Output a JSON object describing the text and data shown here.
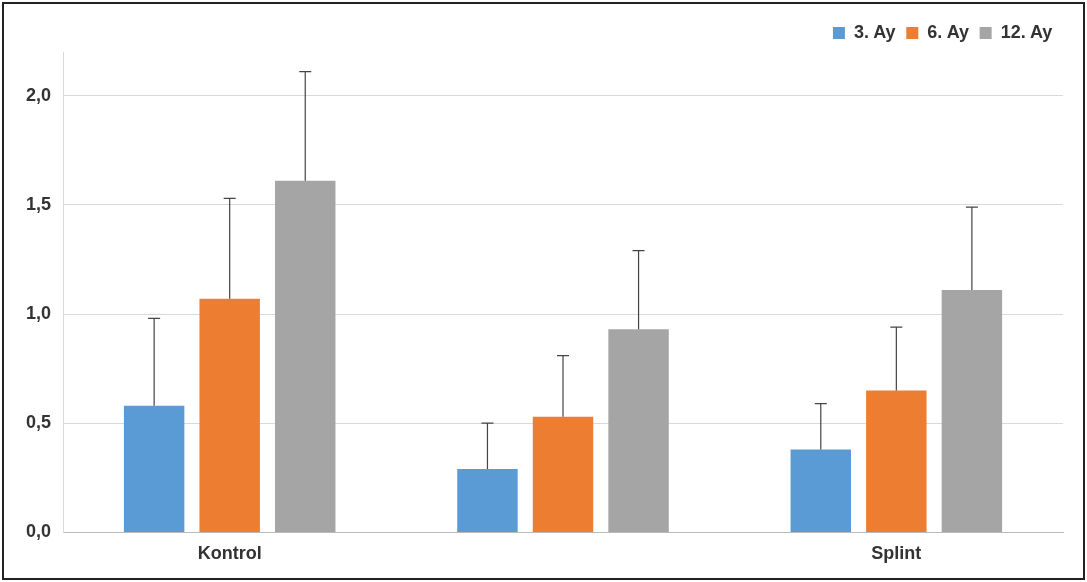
{
  "chart_data": {
    "type": "bar",
    "categories": [
      "Kontrol",
      null,
      "Splint"
    ],
    "series": [
      {
        "name": "3. Ay",
        "color": "#5b9bd5",
        "values": [
          0.58,
          0.29,
          0.38
        ],
        "errors": [
          [
            0.58,
            0.98
          ],
          [
            0.29,
            0.5
          ],
          [
            0.38,
            0.59
          ]
        ]
      },
      {
        "name": "6. Ay",
        "color": "#ed7d31",
        "values": [
          1.07,
          0.53,
          0.65
        ],
        "errors": [
          [
            1.07,
            1.53
          ],
          [
            0.53,
            0.81
          ],
          [
            0.65,
            0.94
          ]
        ]
      },
      {
        "name": "12. Ay",
        "color": "#a5a5a5",
        "values": [
          1.61,
          0.93,
          1.11
        ],
        "errors": [
          [
            1.61,
            2.11
          ],
          [
            0.93,
            1.29
          ],
          [
            1.11,
            1.49
          ]
        ]
      }
    ],
    "ylim": [
      0,
      2.2
    ],
    "yticks": [
      {
        "value": 0,
        "label": "0,0"
      },
      {
        "value": 0.5,
        "label": "0,5"
      },
      {
        "value": 1,
        "label": "1,0"
      },
      {
        "value": 1.5,
        "label": "1,5"
      },
      {
        "value": 2,
        "label": "2,0"
      }
    ],
    "grid": "y",
    "legend": "top right"
  }
}
